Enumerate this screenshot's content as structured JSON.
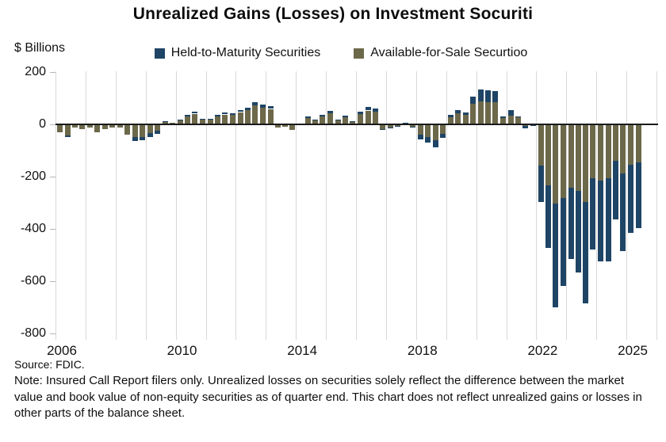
{
  "title": "Unrealized Gains (Losses) on Investment Socuriti",
  "y_axis_unit": "$ Billions",
  "source_text": "Source: FDIC.",
  "note_text": "Note: Insured Call Report filers only. Unrealized losses on securities solely reflect the difference between the market value and book value of non-equity securities as of quarter end. This chart does not reflect unrealized gains or losses in other parts of the balance sheet.",
  "colors": {
    "htm": "#1F4566",
    "afs": "#6C684A",
    "gridline": "#d8d8d8",
    "zero_line": "#1a1a1a",
    "text": "#111111"
  },
  "chart_data": {
    "type": "bar",
    "stacked": true,
    "title": "Unrealized Gains (Losses) on Investment Socuriti",
    "ylabel": "$ Billions",
    "ylim": [
      -800,
      200
    ],
    "y_ticks": [
      200,
      0,
      -200,
      -400,
      -600,
      -800
    ],
    "x_year_labels": [
      "2006",
      "2010",
      "2014",
      "2018",
      "2022",
      "2025"
    ],
    "x_label_years": [
      2006,
      2010,
      2014,
      2018,
      2022,
      2025
    ],
    "years_range": [
      2006,
      2025
    ],
    "grid": "vertical-yearly",
    "legend_position": "top-center",
    "series": [
      {
        "name": "Held-to-Maturity Securities",
        "color": "#1F4566",
        "key": "htm"
      },
      {
        "name": "Available-for-Sale Securtioo",
        "color": "#6C684A",
        "key": "afs"
      }
    ],
    "quarters": [
      {
        "t": "2006Q1",
        "htm": 0,
        "afs": -29
      },
      {
        "t": "2006Q2",
        "htm": -5,
        "afs": -42
      },
      {
        "t": "2006Q3",
        "htm": 0,
        "afs": -11
      },
      {
        "t": "2006Q4",
        "htm": 0,
        "afs": -17
      },
      {
        "t": "2007Q1",
        "htm": 0,
        "afs": -11
      },
      {
        "t": "2007Q2",
        "htm": 0,
        "afs": -31
      },
      {
        "t": "2007Q3",
        "htm": 0,
        "afs": -17
      },
      {
        "t": "2007Q4",
        "htm": 0,
        "afs": -13
      },
      {
        "t": "2008Q1",
        "htm": 0,
        "afs": -13
      },
      {
        "t": "2008Q2",
        "htm": 0,
        "afs": -39
      },
      {
        "t": "2008Q3",
        "htm": -15,
        "afs": -49
      },
      {
        "t": "2008Q4",
        "htm": -12,
        "afs": -49
      },
      {
        "t": "2009Q1",
        "htm": -15,
        "afs": -34
      },
      {
        "t": "2009Q2",
        "htm": -13,
        "afs": -24
      },
      {
        "t": "2009Q3",
        "htm": 2,
        "afs": 11
      },
      {
        "t": "2009Q4",
        "htm": 0,
        "afs": 7
      },
      {
        "t": "2010Q1",
        "htm": 2,
        "afs": 17
      },
      {
        "t": "2010Q2",
        "htm": 5,
        "afs": 31
      },
      {
        "t": "2010Q3",
        "htm": 8,
        "afs": 41
      },
      {
        "t": "2010Q4",
        "htm": 3,
        "afs": 18
      },
      {
        "t": "2011Q1",
        "htm": 3,
        "afs": 18
      },
      {
        "t": "2011Q2",
        "htm": 6,
        "afs": 32
      },
      {
        "t": "2011Q3",
        "htm": 8,
        "afs": 38
      },
      {
        "t": "2011Q4",
        "htm": 7,
        "afs": 36
      },
      {
        "t": "2012Q1",
        "htm": 8,
        "afs": 47
      },
      {
        "t": "2012Q2",
        "htm": 9,
        "afs": 56
      },
      {
        "t": "2012Q3",
        "htm": 13,
        "afs": 72
      },
      {
        "t": "2012Q4",
        "htm": 11,
        "afs": 64
      },
      {
        "t": "2013Q1",
        "htm": 10,
        "afs": 59
      },
      {
        "t": "2013Q2",
        "htm": 0,
        "afs": -12
      },
      {
        "t": "2013Q3",
        "htm": 0,
        "afs": -8
      },
      {
        "t": "2013Q4",
        "htm": 0,
        "afs": -22
      },
      {
        "t": "2014Q1",
        "htm": 0,
        "afs": -4
      },
      {
        "t": "2014Q2",
        "htm": 5,
        "afs": 24
      },
      {
        "t": "2014Q3",
        "htm": 4,
        "afs": 15
      },
      {
        "t": "2014Q4",
        "htm": 7,
        "afs": 29
      },
      {
        "t": "2015Q1",
        "htm": 9,
        "afs": 42
      },
      {
        "t": "2015Q2",
        "htm": 4,
        "afs": 15
      },
      {
        "t": "2015Q3",
        "htm": 7,
        "afs": 26
      },
      {
        "t": "2015Q4",
        "htm": 3,
        "afs": 8
      },
      {
        "t": "2016Q1",
        "htm": 9,
        "afs": 39
      },
      {
        "t": "2016Q2",
        "htm": 14,
        "afs": 53
      },
      {
        "t": "2016Q3",
        "htm": 12,
        "afs": 49
      },
      {
        "t": "2016Q4",
        "htm": -4,
        "afs": -17
      },
      {
        "t": "2017Q1",
        "htm": -3,
        "afs": -11
      },
      {
        "t": "2017Q2",
        "htm": -2,
        "afs": -7
      },
      {
        "t": "2017Q3",
        "htm": 2,
        "afs": 4
      },
      {
        "t": "2017Q4",
        "htm": -3,
        "afs": -9
      },
      {
        "t": "2018Q1",
        "htm": -18,
        "afs": -39
      },
      {
        "t": "2018Q2",
        "htm": -22,
        "afs": -47
      },
      {
        "t": "2018Q3",
        "htm": -28,
        "afs": -59
      },
      {
        "t": "2018Q4",
        "htm": -16,
        "afs": -35
      },
      {
        "t": "2019Q1",
        "htm": 8,
        "afs": 28
      },
      {
        "t": "2019Q2",
        "htm": 12,
        "afs": 44
      },
      {
        "t": "2019Q3",
        "htm": 10,
        "afs": 36
      },
      {
        "t": "2019Q4",
        "htm": 27,
        "afs": 80
      },
      {
        "t": "2020Q1",
        "htm": 45,
        "afs": 89
      },
      {
        "t": "2020Q2",
        "htm": 44,
        "afs": 86
      },
      {
        "t": "2020Q3",
        "htm": 42,
        "afs": 85
      },
      {
        "t": "2020Q4",
        "htm": 4,
        "afs": 25
      },
      {
        "t": "2021Q1",
        "htm": 23,
        "afs": 33
      },
      {
        "t": "2021Q2",
        "htm": 5,
        "afs": 26
      },
      {
        "t": "2021Q3",
        "htm": -8,
        "afs": -6
      },
      {
        "t": "2021Q4",
        "htm": -4,
        "afs": -2
      },
      {
        "t": "2022Q1",
        "htm": -141,
        "afs": -156
      },
      {
        "t": "2022Q2",
        "htm": -240,
        "afs": -234
      },
      {
        "t": "2022Q3",
        "htm": -398,
        "afs": -302
      },
      {
        "t": "2022Q4",
        "htm": -336,
        "afs": -282
      },
      {
        "t": "2023Q1",
        "htm": -273,
        "afs": -241
      },
      {
        "t": "2023Q2",
        "htm": -312,
        "afs": -253
      },
      {
        "t": "2023Q3",
        "htm": -389,
        "afs": -297
      },
      {
        "t": "2023Q4",
        "htm": -273,
        "afs": -206
      },
      {
        "t": "2024Q1",
        "htm": -310,
        "afs": -215
      },
      {
        "t": "2024Q2",
        "htm": -316,
        "afs": -207
      },
      {
        "t": "2024Q3",
        "htm": -225,
        "afs": -139
      },
      {
        "t": "2024Q4",
        "htm": -298,
        "afs": -187
      },
      {
        "t": "2025Q1",
        "htm": -259,
        "afs": -155
      },
      {
        "t": "2025Q2",
        "htm": -251,
        "afs": -146
      }
    ]
  }
}
